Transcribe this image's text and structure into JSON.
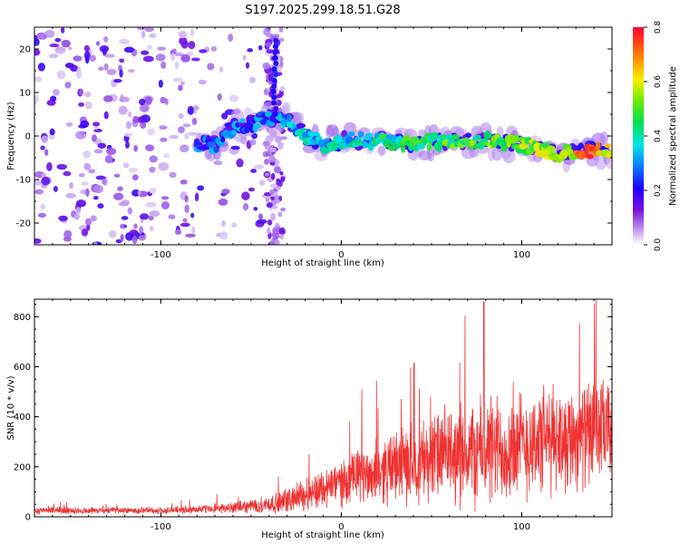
{
  "title": "S197.2025.299.18.51.G28",
  "chart_data": [
    {
      "type": "heatmap",
      "name": "spectrogram",
      "xlabel": "Height of straight line (km)",
      "ylabel": "Frequency (Hz)",
      "xlim": [
        -170,
        150
      ],
      "ylim": [
        -25,
        25
      ],
      "xticks": [
        -100,
        0,
        100
      ],
      "yticks": [
        -20,
        -10,
        0,
        10,
        20
      ],
      "colorbar": {
        "label": "Normalized spectral amplitude",
        "range": [
          0,
          0.8
        ],
        "ticks": [
          "0.0",
          "0.2",
          "0.4",
          "0.6",
          "0.8"
        ]
      },
      "ridge": [
        {
          "x": -70,
          "y": -2
        },
        {
          "x": -60,
          "y": 2
        },
        {
          "x": -50,
          "y": 3
        },
        {
          "x": -40,
          "y": 4
        },
        {
          "x": -30,
          "y": 4
        },
        {
          "x": -20,
          "y": 0
        },
        {
          "x": -10,
          "y": -2
        },
        {
          "x": 0,
          "y": -1
        },
        {
          "x": 20,
          "y": -1
        },
        {
          "x": 40,
          "y": -2
        },
        {
          "x": 60,
          "y": -1
        },
        {
          "x": 80,
          "y": -1
        },
        {
          "x": 100,
          "y": -2
        },
        {
          "x": 120,
          "y": -4
        },
        {
          "x": 150,
          "y": -3
        }
      ]
    },
    {
      "type": "line",
      "name": "snr",
      "xlabel": "Height of straight line (km)",
      "ylabel": "SNR (10 * v/v)",
      "xlim": [
        -170,
        150
      ],
      "ylim": [
        0,
        870
      ],
      "xticks": [
        -100,
        0,
        100
      ],
      "yticks": [
        0,
        200,
        400,
        600,
        800
      ],
      "color": "#ef3333",
      "envelope": [
        {
          "x": -170,
          "mean": 25,
          "spread": 20
        },
        {
          "x": -100,
          "mean": 25,
          "spread": 20
        },
        {
          "x": -60,
          "mean": 35,
          "spread": 30
        },
        {
          "x": -35,
          "mean": 55,
          "spread": 60
        },
        {
          "x": -20,
          "mean": 90,
          "spread": 100
        },
        {
          "x": 0,
          "mean": 140,
          "spread": 140
        },
        {
          "x": 25,
          "mean": 190,
          "spread": 200
        },
        {
          "x": 50,
          "mean": 240,
          "spread": 260
        },
        {
          "x": 80,
          "mean": 260,
          "spread": 330
        },
        {
          "x": 110,
          "mean": 300,
          "spread": 320
        },
        {
          "x": 150,
          "mean": 350,
          "spread": 300
        }
      ]
    }
  ]
}
